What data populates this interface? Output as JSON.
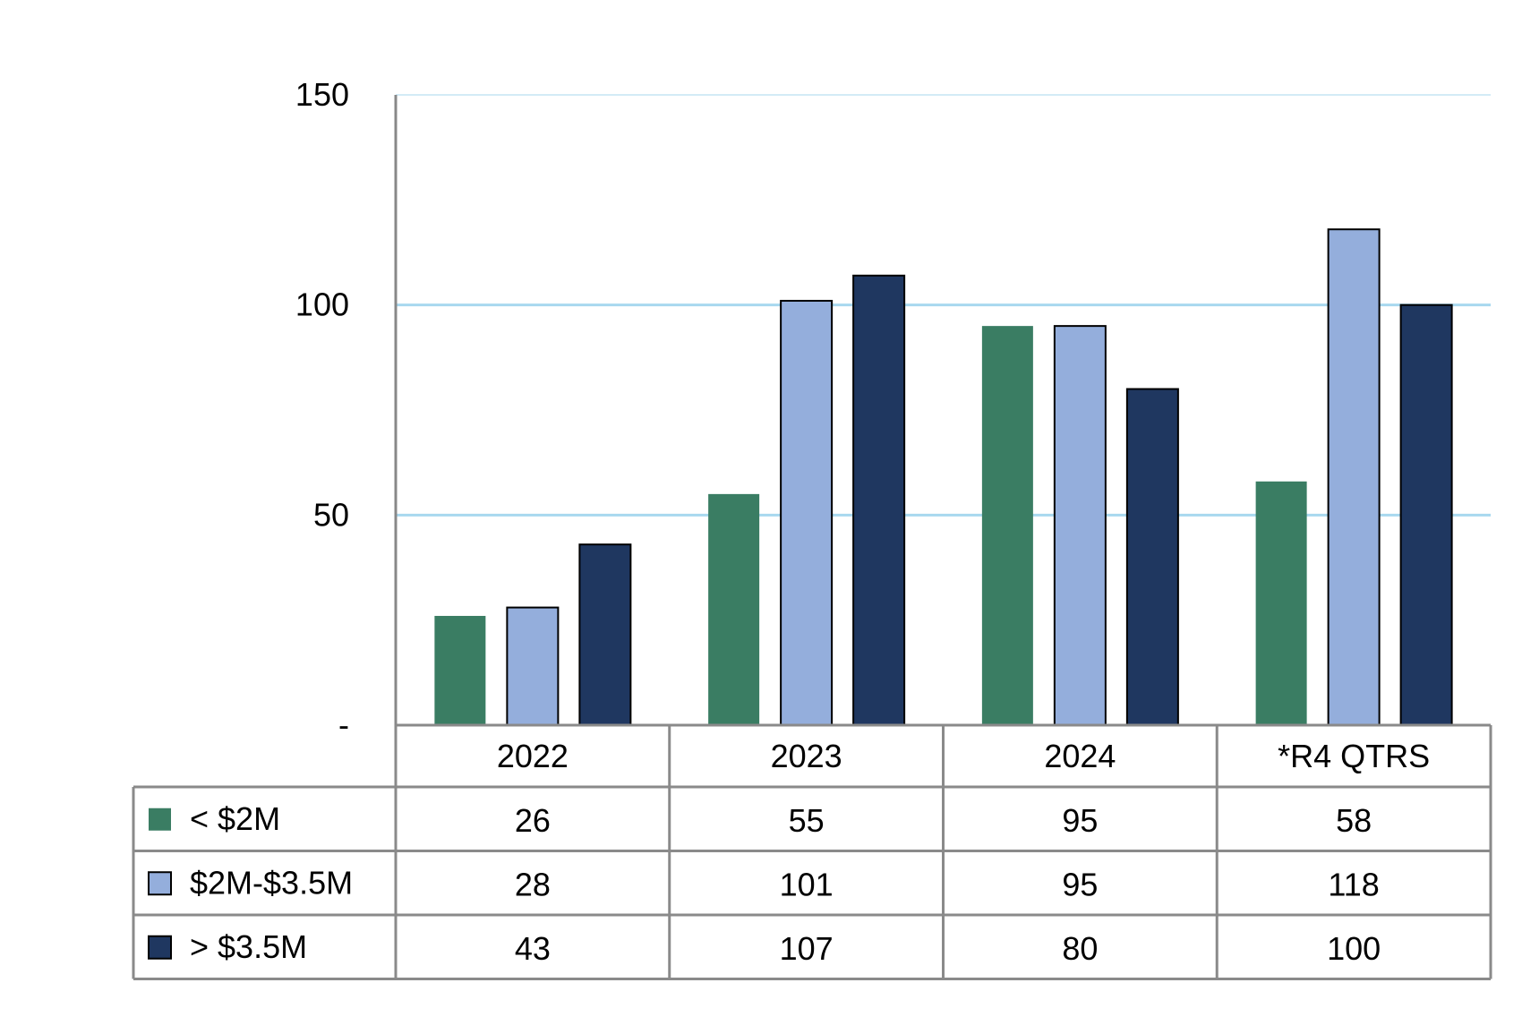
{
  "chart_data": {
    "type": "bar",
    "categories": [
      "2022",
      "2023",
      "2024",
      "*R4 QTRS"
    ],
    "series": [
      {
        "name": "< $2M",
        "values": [
          26,
          55,
          95,
          58
        ],
        "color": "#3a7d63"
      },
      {
        "name": "$2M-$3.5M",
        "values": [
          28,
          101,
          95,
          118
        ],
        "color": "#94aedc"
      },
      {
        "name": "> $3.5M",
        "values": [
          43,
          107,
          80,
          100
        ],
        "color": "#1f3760"
      }
    ],
    "ylim": [
      0,
      150
    ],
    "yticks": [
      0,
      50,
      100,
      150
    ],
    "ytick_labels": [
      "-",
      "50",
      "100",
      "150"
    ],
    "grid": true,
    "gridline_color": "#a8d8ef",
    "legend": "data-table"
  }
}
